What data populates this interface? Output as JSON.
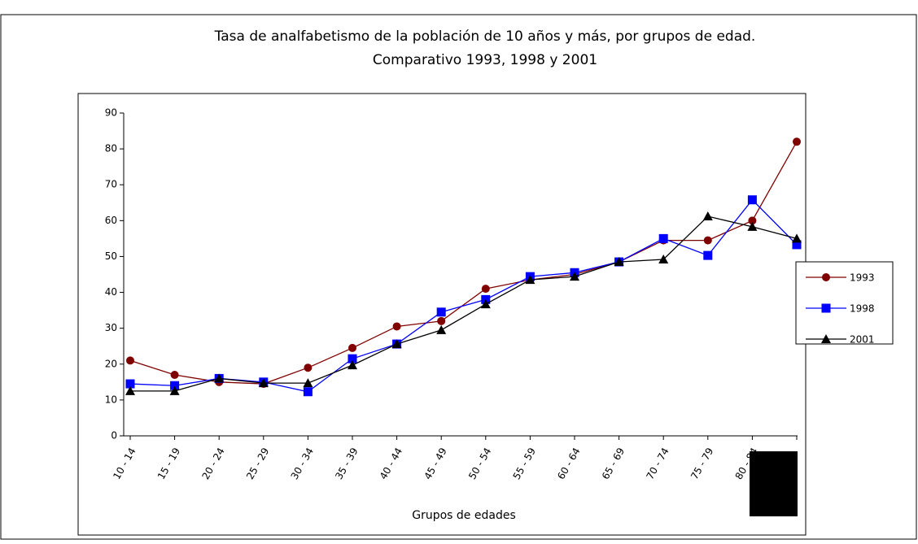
{
  "chart_data": {
    "type": "line",
    "title": "Tasa de analfabetismo de la población de 10 años y más, por grupos de edad.",
    "subtitle": "Comparativo 1993, 1998 y 2001",
    "x_label": "Grupos de edades",
    "categories": [
      "10 - 14",
      "15 - 19",
      "20 - 24",
      "25 - 29",
      "30 - 34",
      "35 - 39",
      "40 - 44",
      "45 - 49",
      "50 - 54",
      "55 - 59",
      "60 - 64",
      "65 - 69",
      "70 - 74",
      "75 - 79",
      "80 - 84",
      null
    ],
    "series": [
      {
        "name": "1993",
        "color": "#800000",
        "marker": "circle",
        "values": [
          21,
          17,
          15,
          14.5,
          19,
          24.5,
          30.5,
          32,
          41,
          43.5,
          45,
          48.5,
          54.5,
          54.5,
          60,
          82
        ]
      },
      {
        "name": "1998",
        "color": "#0000ff",
        "marker": "square",
        "values": [
          14.5,
          14,
          16,
          15,
          12.3,
          21.5,
          25.6,
          34.5,
          38,
          44.4,
          45.5,
          48.5,
          55,
          50.3,
          65.8,
          53.3
        ]
      },
      {
        "name": "2001",
        "color": "#000000",
        "marker": "triangle",
        "values": [
          12.5,
          12.5,
          16,
          14.7,
          14.7,
          19.7,
          25.6,
          29.5,
          36.7,
          43.5,
          44.4,
          48.5,
          49.2,
          61.2,
          58.3,
          55
        ]
      }
    ],
    "ylim": [
      0,
      90
    ],
    "yticks": [
      0,
      10,
      20,
      30,
      40,
      50,
      60,
      70,
      80,
      90
    ],
    "legend": "right"
  }
}
